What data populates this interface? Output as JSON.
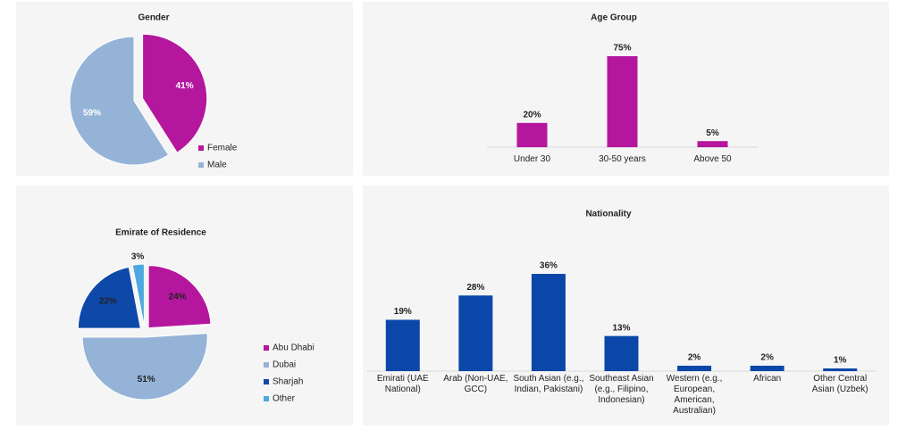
{
  "chart_data": [
    {
      "type": "pie",
      "title": "Gender",
      "categories": [
        "Female",
        "Male"
      ],
      "values": [
        41,
        59
      ],
      "value_labels": [
        "41%",
        "59%"
      ],
      "colors": [
        "#b5169e",
        "#95b3d7"
      ],
      "legend": "bottom-right"
    },
    {
      "type": "bar",
      "title": "Age Group",
      "categories": [
        "Under 30",
        "30-50 years",
        "Above 50"
      ],
      "values": [
        20,
        75,
        5
      ],
      "value_labels": [
        "20%",
        "75%",
        "5%"
      ],
      "color": "#b5169e"
    },
    {
      "type": "pie",
      "title": "Emirate of Residence",
      "categories": [
        "Abu Dhabi",
        "Dubai",
        "Sharjah",
        "Other"
      ],
      "values": [
        24,
        51,
        22,
        3
      ],
      "value_labels": [
        "24%",
        "51%",
        "22%",
        "3%"
      ],
      "colors": [
        "#b5169e",
        "#95b3d7",
        "#0e48a8",
        "#4ea8de"
      ],
      "legend": "bottom-right"
    },
    {
      "type": "bar",
      "title": "Nationality",
      "categories": [
        "Emirati (UAE National)",
        "Arab (Non-UAE, GCC)",
        "South Asian (e.g., Indian, Pakistani)",
        "Southeast Asian (e.g., Filipino, Indonesian)",
        "Western (e.g., European, American, Australian)",
        "African",
        "Other Central Asian (Uzbek)"
      ],
      "values": [
        19,
        28,
        36,
        13,
        2,
        2,
        1
      ],
      "value_labels": [
        "19%",
        "28%",
        "36%",
        "13%",
        "2%",
        "2%",
        "1%"
      ],
      "color": "#0a47a9"
    }
  ]
}
